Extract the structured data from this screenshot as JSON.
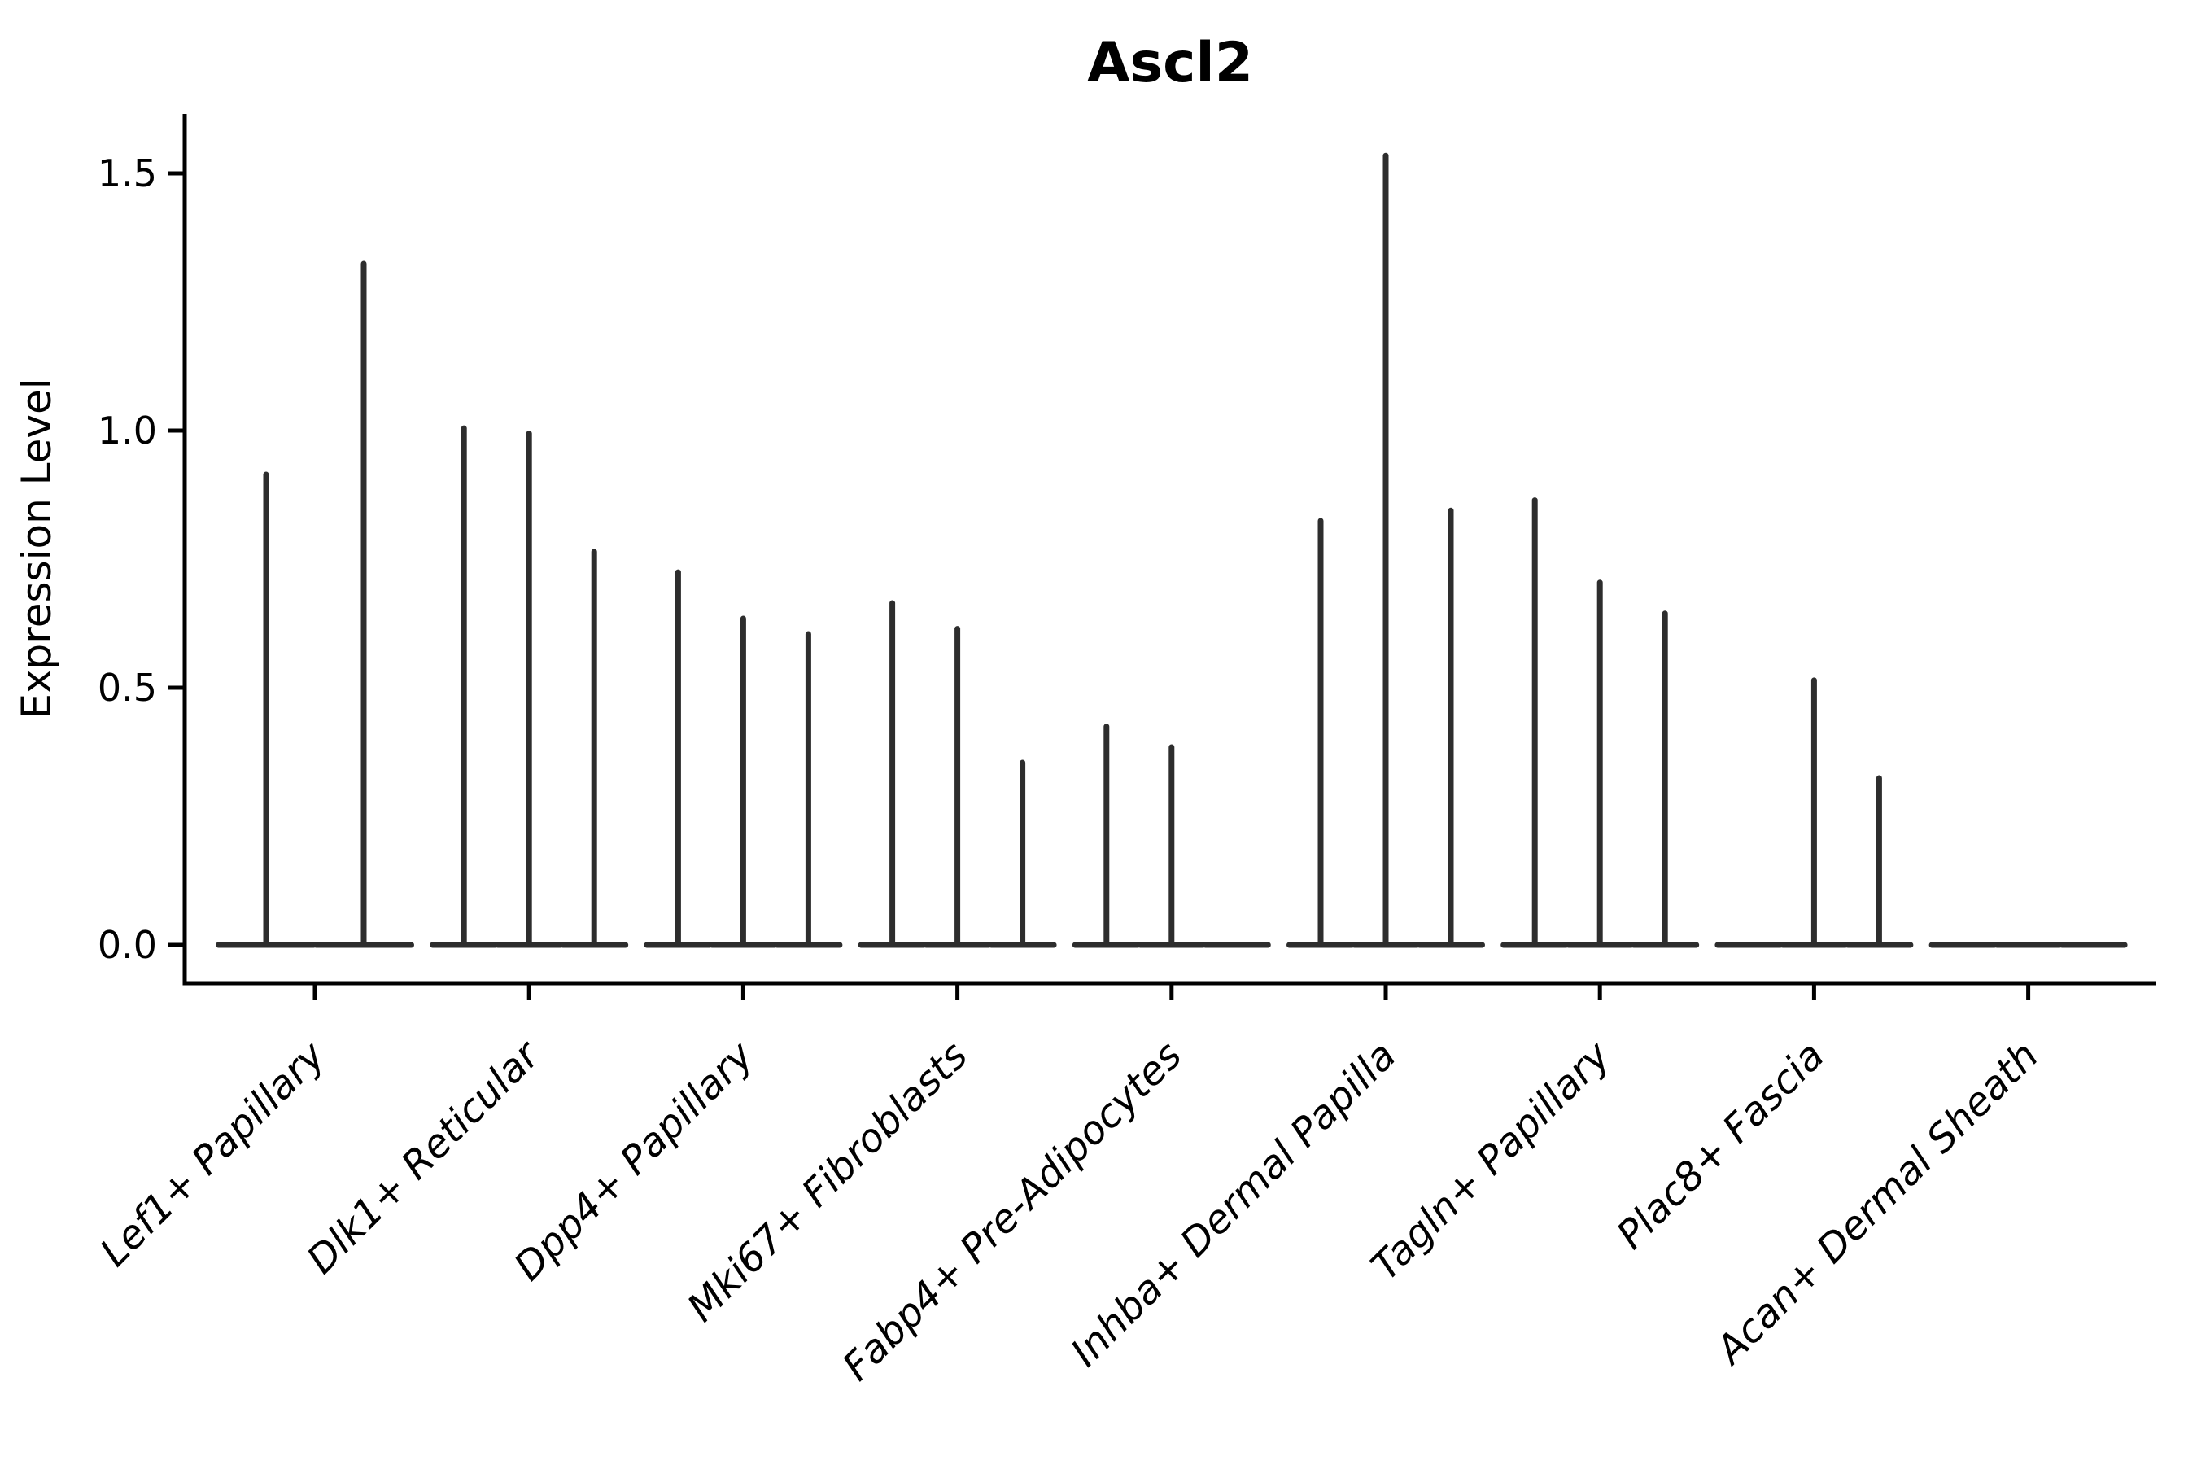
{
  "page": {
    "background": "#ffffff"
  },
  "chart_data": {
    "type": "violin",
    "title": "Ascl2",
    "xlabel": "",
    "ylabel": "Expression Level",
    "yticks": [
      0.0,
      0.5,
      1.0,
      1.5
    ],
    "ytick_labels": [
      "0.0",
      "0.5",
      "1.0",
      "1.5"
    ],
    "ylim": [
      -0.07,
      1.62
    ],
    "grid": false,
    "legend_position": "none",
    "note": "Needle-thin split violins; each category shows 2-3 violins rising from a flat base at expression 0. 'maxima' are the peak expression heights of each violin, left to right; 0 means a flat violin at baseline.",
    "violins": [
      {
        "category": "Lef1+ Papillary",
        "maxima": [
          0.92,
          1.33
        ]
      },
      {
        "category": "Dlk1+ Reticular",
        "maxima": [
          1.01,
          1.0,
          0.77
        ]
      },
      {
        "category": "Dpp4+ Papillary",
        "maxima": [
          0.73,
          0.64,
          0.61
        ]
      },
      {
        "category": "Mki67+ Fibroblasts",
        "maxima": [
          0.67,
          0.62,
          0.36
        ]
      },
      {
        "category": "Fabp4+ Pre-Adipocytes",
        "maxima": [
          0.43,
          0.39,
          0.0
        ]
      },
      {
        "category": "Inhba+ Dermal Papilla",
        "maxima": [
          0.83,
          1.54,
          0.85
        ]
      },
      {
        "category": "Tagln+ Papillary",
        "maxima": [
          0.87,
          0.71,
          0.65
        ]
      },
      {
        "category": "Plac8+ Fascia",
        "maxima": [
          0.0,
          0.52,
          0.33
        ]
      },
      {
        "category": "Acan+ Dermal Sheath",
        "maxima": [
          0.0,
          0.0,
          0.0
        ]
      }
    ],
    "colors": {
      "violin": "#2d2d2d",
      "axis": "#000000",
      "text": "#000000",
      "background": "#ffffff"
    }
  }
}
